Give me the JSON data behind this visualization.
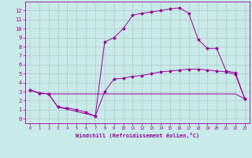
{
  "xlabel": "Windchill (Refroidissement éolien,°C)",
  "background_color": "#c8eae8",
  "grid_color": "#b0c8c8",
  "line_color": "#990099",
  "xlim": [
    -0.5,
    23.5
  ],
  "ylim": [
    -0.5,
    13.0
  ],
  "xticks": [
    0,
    1,
    2,
    3,
    4,
    5,
    6,
    7,
    8,
    9,
    10,
    11,
    12,
    13,
    14,
    15,
    16,
    17,
    18,
    19,
    20,
    21,
    22,
    23
  ],
  "yticks": [
    0,
    1,
    2,
    3,
    4,
    5,
    6,
    7,
    8,
    9,
    10,
    11,
    12
  ],
  "line1_x": [
    0,
    1,
    2,
    3,
    4,
    5,
    6,
    7,
    8,
    9,
    10,
    11,
    12,
    13,
    14,
    15,
    16,
    17,
    18,
    19,
    20,
    21,
    22,
    23
  ],
  "line1_y": [
    3.2,
    2.85,
    2.75,
    2.75,
    2.75,
    2.75,
    2.75,
    2.75,
    2.75,
    2.75,
    2.75,
    2.75,
    2.75,
    2.75,
    2.75,
    2.75,
    2.75,
    2.75,
    2.75,
    2.75,
    2.75,
    2.75,
    2.75,
    2.2
  ],
  "line2_x": [
    0,
    1,
    2,
    3,
    4,
    5,
    6,
    7,
    8,
    9,
    10,
    11,
    12,
    13,
    14,
    15,
    16,
    17,
    18,
    19,
    20,
    21,
    22,
    23
  ],
  "line2_y": [
    3.2,
    2.85,
    2.75,
    1.3,
    1.2,
    1.0,
    0.7,
    0.3,
    3.0,
    4.4,
    4.5,
    4.7,
    4.8,
    5.0,
    5.2,
    5.3,
    5.4,
    5.5,
    5.5,
    5.4,
    5.3,
    5.2,
    4.9,
    2.2
  ],
  "line3_x": [
    0,
    1,
    2,
    3,
    7,
    8,
    9,
    10,
    11,
    12,
    13,
    14,
    15,
    16,
    17,
    18,
    19,
    20,
    21,
    22,
    23
  ],
  "line3_y": [
    3.2,
    2.85,
    2.75,
    1.3,
    0.3,
    8.5,
    9.0,
    10.0,
    11.5,
    11.7,
    11.85,
    12.0,
    12.2,
    12.3,
    11.7,
    8.8,
    7.8,
    7.8,
    5.3,
    5.1,
    2.2
  ]
}
